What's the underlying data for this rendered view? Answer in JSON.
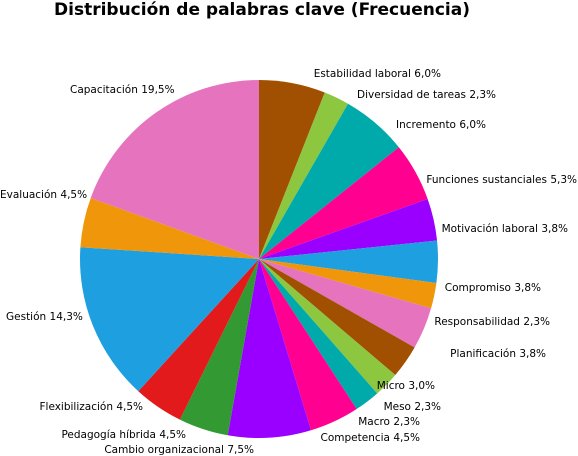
{
  "chart_data": {
    "type": "pie",
    "title": "Distribución de palabras clave (Frecuencia)",
    "slices": [
      {
        "label": "Estabilidad laboral",
        "value_text": "6,0%",
        "value": 6.0,
        "color": "#A05000"
      },
      {
        "label": "Diversidad de tareas",
        "value_text": "2,3%",
        "value": 2.3,
        "color": "#8DC63F"
      },
      {
        "label": "Incremento ",
        "value_text": "6,0%",
        "value": 6.0,
        "color": "#00AAAA"
      },
      {
        "label": "Funciones sustanciales",
        "value_text": "5,3%",
        "value": 5.3,
        "color": "#FF0090"
      },
      {
        "label": "Motivación laboral",
        "value_text": "3,8%",
        "value": 3.8,
        "color": "#9900FF"
      },
      {
        "label": "Compromiso",
        "value_text": "3,8%",
        "value": 3.8,
        "color": "#1E9FE0"
      },
      {
        "label": "Responsabilidad",
        "value_text": "2,3%",
        "value": 2.3,
        "color": "#F0960A"
      },
      {
        "label": "Planificación",
        "value_text": "3,8%",
        "value": 3.8,
        "color": "#E573BE"
      },
      {
        "label": "Micro",
        "value_text": "3,0%",
        "value": 3.0,
        "color": "#A05000"
      },
      {
        "label": "Meso",
        "value_text": "2,3%",
        "value": 2.3,
        "color": "#8DC63F"
      },
      {
        "label": "Macro",
        "value_text": "2,3%",
        "value": 2.3,
        "color": "#00AAAA"
      },
      {
        "label": "Competencia",
        "value_text": "4,5%",
        "value": 4.5,
        "color": "#FF0090"
      },
      {
        "label": "Cambio organizacional",
        "value_text": "7,5%",
        "value": 7.5,
        "color": "#9900FF"
      },
      {
        "label": "Pedagogía híbrida",
        "value_text": "4,5%",
        "value": 4.5,
        "color": "#339933"
      },
      {
        "label": "Flexibilización",
        "value_text": "4,5%",
        "value": 4.5,
        "color": "#E31A1C"
      },
      {
        "label": "Gestión",
        "value_text": "14,3%",
        "value": 14.3,
        "color": "#1E9FE0"
      },
      {
        "label": "Evaluación",
        "value_text": "4,5%",
        "value": 4.5,
        "color": "#F0960A"
      },
      {
        "label": "Capacitación",
        "value_text": "19,5%",
        "value": 19.5,
        "color": "#E573BE"
      }
    ]
  }
}
